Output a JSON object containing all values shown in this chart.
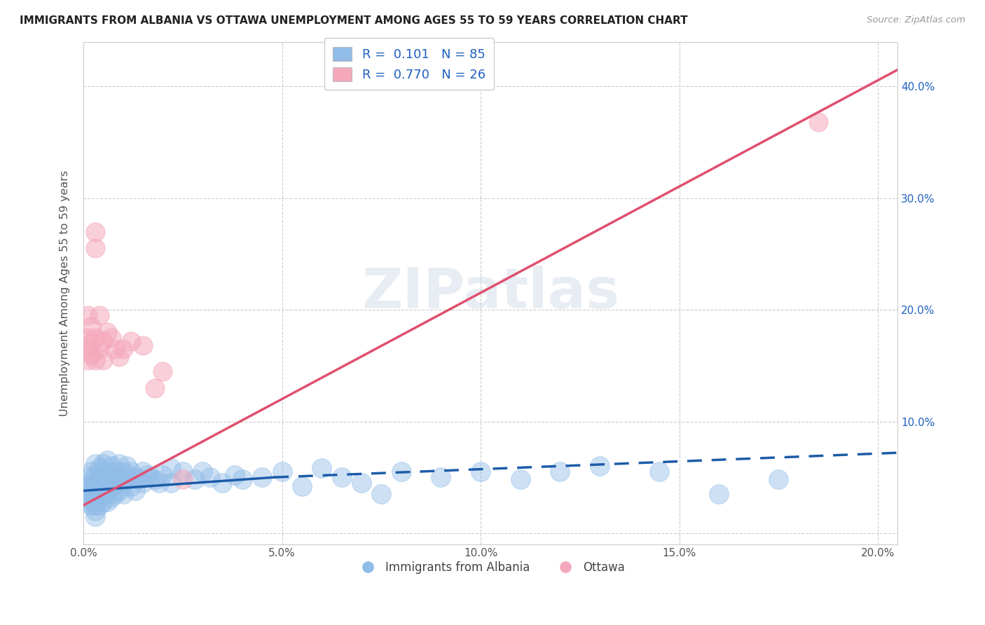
{
  "title": "IMMIGRANTS FROM ALBANIA VS OTTAWA UNEMPLOYMENT AMONG AGES 55 TO 59 YEARS CORRELATION CHART",
  "source": "Source: ZipAtlas.com",
  "ylabel": "Unemployment Among Ages 55 to 59 years",
  "xlim": [
    0.0,
    0.205
  ],
  "ylim": [
    -0.01,
    0.44
  ],
  "xticks": [
    0.0,
    0.05,
    0.1,
    0.15,
    0.2
  ],
  "xtick_labels": [
    "0.0%",
    "5.0%",
    "10.0%",
    "15.0%",
    "20.0%"
  ],
  "yticks": [
    0.0,
    0.1,
    0.2,
    0.3,
    0.4
  ],
  "ytick_labels_left": [
    "",
    "",
    "",
    "",
    ""
  ],
  "ytick_labels_right": [
    "",
    "10.0%",
    "20.0%",
    "30.0%",
    "40.0%"
  ],
  "blue_color": "#90bce8",
  "pink_color": "#f5a8bc",
  "blue_line_color": "#1c5ca8",
  "pink_line_color": "#e05070",
  "legend_blue_label": "R =  0.101   N = 85",
  "legend_pink_label": "R =  0.770   N = 26",
  "legend_text_color": "#2060c0",
  "watermark": "ZIPatlas",
  "blue_scatter": [
    [
      0.001,
      0.05
    ],
    [
      0.001,
      0.042
    ],
    [
      0.001,
      0.038
    ],
    [
      0.001,
      0.032
    ],
    [
      0.001,
      0.028
    ],
    [
      0.002,
      0.055
    ],
    [
      0.002,
      0.045
    ],
    [
      0.002,
      0.038
    ],
    [
      0.002,
      0.03
    ],
    [
      0.002,
      0.025
    ],
    [
      0.003,
      0.062
    ],
    [
      0.003,
      0.052
    ],
    [
      0.003,
      0.045
    ],
    [
      0.003,
      0.038
    ],
    [
      0.003,
      0.032
    ],
    [
      0.003,
      0.025
    ],
    [
      0.003,
      0.02
    ],
    [
      0.003,
      0.015
    ],
    [
      0.004,
      0.058
    ],
    [
      0.004,
      0.048
    ],
    [
      0.004,
      0.04
    ],
    [
      0.004,
      0.032
    ],
    [
      0.004,
      0.025
    ],
    [
      0.005,
      0.062
    ],
    [
      0.005,
      0.052
    ],
    [
      0.005,
      0.042
    ],
    [
      0.005,
      0.035
    ],
    [
      0.005,
      0.028
    ],
    [
      0.006,
      0.065
    ],
    [
      0.006,
      0.055
    ],
    [
      0.006,
      0.045
    ],
    [
      0.006,
      0.035
    ],
    [
      0.006,
      0.028
    ],
    [
      0.007,
      0.06
    ],
    [
      0.007,
      0.05
    ],
    [
      0.007,
      0.04
    ],
    [
      0.007,
      0.032
    ],
    [
      0.008,
      0.055
    ],
    [
      0.008,
      0.045
    ],
    [
      0.008,
      0.035
    ],
    [
      0.009,
      0.062
    ],
    [
      0.009,
      0.048
    ],
    [
      0.009,
      0.038
    ],
    [
      0.01,
      0.055
    ],
    [
      0.01,
      0.045
    ],
    [
      0.01,
      0.035
    ],
    [
      0.011,
      0.06
    ],
    [
      0.011,
      0.05
    ],
    [
      0.012,
      0.055
    ],
    [
      0.012,
      0.042
    ],
    [
      0.013,
      0.05
    ],
    [
      0.013,
      0.038
    ],
    [
      0.014,
      0.048
    ],
    [
      0.015,
      0.055
    ],
    [
      0.015,
      0.045
    ],
    [
      0.016,
      0.052
    ],
    [
      0.017,
      0.05
    ],
    [
      0.018,
      0.048
    ],
    [
      0.019,
      0.045
    ],
    [
      0.02,
      0.052
    ],
    [
      0.022,
      0.058
    ],
    [
      0.022,
      0.045
    ],
    [
      0.025,
      0.055
    ],
    [
      0.028,
      0.048
    ],
    [
      0.03,
      0.055
    ],
    [
      0.032,
      0.05
    ],
    [
      0.035,
      0.045
    ],
    [
      0.038,
      0.052
    ],
    [
      0.04,
      0.048
    ],
    [
      0.045,
      0.05
    ],
    [
      0.05,
      0.055
    ],
    [
      0.055,
      0.042
    ],
    [
      0.06,
      0.058
    ],
    [
      0.065,
      0.05
    ],
    [
      0.07,
      0.045
    ],
    [
      0.075,
      0.035
    ],
    [
      0.08,
      0.055
    ],
    [
      0.09,
      0.05
    ],
    [
      0.1,
      0.055
    ],
    [
      0.11,
      0.048
    ],
    [
      0.12,
      0.055
    ],
    [
      0.13,
      0.06
    ],
    [
      0.145,
      0.055
    ],
    [
      0.16,
      0.035
    ],
    [
      0.175,
      0.048
    ]
  ],
  "pink_scatter": [
    [
      0.001,
      0.195
    ],
    [
      0.001,
      0.175
    ],
    [
      0.001,
      0.165
    ],
    [
      0.001,
      0.155
    ],
    [
      0.002,
      0.185
    ],
    [
      0.002,
      0.17
    ],
    [
      0.002,
      0.16
    ],
    [
      0.003,
      0.27
    ],
    [
      0.003,
      0.255
    ],
    [
      0.003,
      0.175
    ],
    [
      0.003,
      0.155
    ],
    [
      0.004,
      0.195
    ],
    [
      0.004,
      0.165
    ],
    [
      0.005,
      0.172
    ],
    [
      0.005,
      0.155
    ],
    [
      0.006,
      0.18
    ],
    [
      0.007,
      0.175
    ],
    [
      0.008,
      0.165
    ],
    [
      0.009,
      0.158
    ],
    [
      0.01,
      0.165
    ],
    [
      0.012,
      0.172
    ],
    [
      0.015,
      0.168
    ],
    [
      0.018,
      0.13
    ],
    [
      0.02,
      0.145
    ],
    [
      0.025,
      0.048
    ],
    [
      0.185,
      0.368
    ]
  ],
  "blue_trendline_solid": [
    [
      0.0,
      0.038
    ],
    [
      0.048,
      0.05
    ]
  ],
  "blue_trendline_dashed": [
    [
      0.048,
      0.05
    ],
    [
      0.205,
      0.072
    ]
  ],
  "pink_trendline": [
    [
      0.0,
      0.025
    ],
    [
      0.205,
      0.415
    ]
  ],
  "background_color": "#ffffff",
  "grid_color": "#cccccc"
}
